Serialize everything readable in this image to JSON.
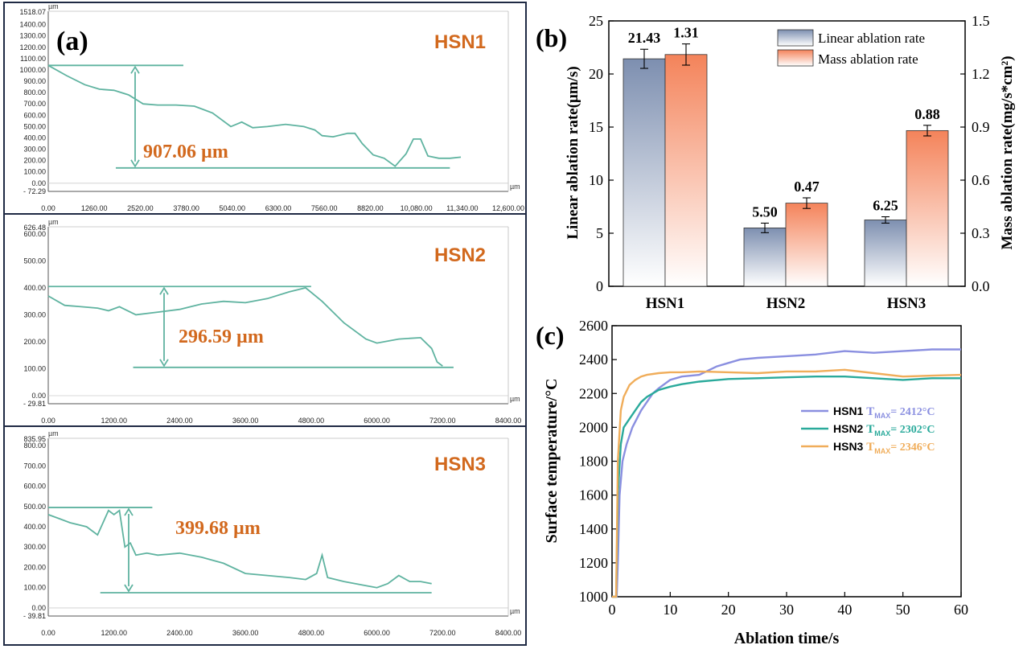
{
  "colors": {
    "teal": "#5fb3a0",
    "orange": "#d2691e",
    "navy": "#1f2a44",
    "linear_bar_top": "#7d8fb0",
    "mass_bar_top": "#f4835a",
    "hsn1_line": "#8a8fe0",
    "hsn2_line": "#2aaa9b",
    "hsn3_line": "#f0ad5a"
  },
  "panel_a": {
    "label": "(a)",
    "unit_label": "µm",
    "profiles": [
      {
        "name": "HSN1",
        "depth_label": "907.06 µm",
        "ymax_label": "1518.07",
        "ymin_label": "- 72.29",
        "y_ticks": [
          "1400.00",
          "1300.00",
          "1200.00",
          "1100.00",
          "1000.00",
          "900.00",
          "800.00",
          "700.00",
          "600.00",
          "500.00",
          "400.00",
          "300.00",
          "200.00",
          "100.00",
          "0.00"
        ],
        "x_ticks": [
          "0.00",
          "1260.00",
          "2520.00",
          "3780.00",
          "5040.00",
          "6300.00",
          "7560.00",
          "8820.00",
          "10,080.00",
          "11,340.00",
          "12,600.00"
        ],
        "chart_data": {
          "type": "line",
          "xlim": [
            0,
            12600
          ],
          "ylim": [
            -72.29,
            1518.07
          ],
          "x": [
            0,
            500,
            1000,
            1400,
            1800,
            2200,
            2600,
            3000,
            3500,
            4000,
            4500,
            5000,
            5300,
            5600,
            6000,
            6500,
            7000,
            7300,
            7500,
            7800,
            8200,
            8400,
            8600,
            8900,
            9200,
            9500,
            9800,
            10000,
            10200,
            10400,
            10700,
            11000,
            11300
          ],
          "y": [
            1040,
            950,
            870,
            830,
            820,
            780,
            700,
            690,
            690,
            680,
            620,
            500,
            540,
            490,
            500,
            520,
            500,
            470,
            420,
            410,
            440,
            440,
            350,
            250,
            220,
            150,
            260,
            390,
            390,
            240,
            220,
            220,
            230
          ],
          "top_ref_y": 1040,
          "bottom_ref_y": 135
        }
      },
      {
        "name": "HSN2",
        "depth_label": "296.59 µm",
        "ymax_label": "626.48",
        "ymin_label": "- 29.81",
        "y_ticks": [
          "600.00",
          "500.00",
          "400.00",
          "300.00",
          "200.00",
          "100.00",
          "0.00"
        ],
        "x_ticks": [
          "0.00",
          "1200.00",
          "2400.00",
          "3600.00",
          "4800.00",
          "6000.00",
          "7200.00",
          "8400.00"
        ],
        "chart_data": {
          "type": "line",
          "xlim": [
            0,
            8400
          ],
          "ylim": [
            -29.81,
            626.48
          ],
          "x": [
            0,
            300,
            600,
            900,
            1100,
            1300,
            1600,
            2000,
            2400,
            2800,
            3200,
            3600,
            4000,
            4400,
            4700,
            5000,
            5400,
            5800,
            6000,
            6400,
            6800,
            7000,
            7100,
            7200
          ],
          "y": [
            370,
            335,
            330,
            325,
            315,
            330,
            300,
            310,
            320,
            340,
            350,
            345,
            360,
            385,
            400,
            350,
            270,
            210,
            195,
            210,
            215,
            175,
            125,
            110
          ],
          "top_ref_y": 405,
          "bottom_ref_y": 105
        }
      },
      {
        "name": "HSN3",
        "depth_label": "399.68 µm",
        "ymax_label": "835.95",
        "ymin_label": "- 39.81",
        "y_ticks": [
          "800.00",
          "700.00",
          "600.00",
          "500.00",
          "400.00",
          "300.00",
          "200.00",
          "100.00",
          "0.00"
        ],
        "x_ticks": [
          "0.00",
          "1200.00",
          "2400.00",
          "3600.00",
          "4800.00",
          "6000.00",
          "7200.00",
          "8400.00"
        ],
        "chart_data": {
          "type": "line",
          "xlim": [
            0,
            8400
          ],
          "ylim": [
            -39.81,
            835.95
          ],
          "x": [
            0,
            200,
            400,
            700,
            900,
            1000,
            1100,
            1200,
            1300,
            1400,
            1500,
            1600,
            1800,
            2000,
            2400,
            2800,
            3200,
            3600,
            4000,
            4400,
            4700,
            4900,
            5000,
            5100,
            5400,
            5800,
            6000,
            6200,
            6400,
            6600,
            6800,
            7000
          ],
          "y": [
            460,
            440,
            420,
            400,
            360,
            420,
            480,
            460,
            480,
            300,
            320,
            260,
            270,
            260,
            270,
            250,
            220,
            170,
            160,
            150,
            140,
            170,
            260,
            150,
            130,
            110,
            100,
            120,
            160,
            130,
            130,
            120
          ],
          "top_ref_y": 495,
          "bottom_ref_y": 75
        }
      }
    ]
  },
  "panel_b": {
    "label": "(b)",
    "chart_data": {
      "type": "bar",
      "categories": [
        "HSN1",
        "HSN2",
        "HSN3"
      ],
      "series": [
        {
          "name": "Linear ablation rate",
          "axis": "left",
          "values": [
            21.43,
            5.5,
            6.25
          ],
          "errors": [
            0.9,
            0.45,
            0.3
          ],
          "labels": [
            "21.43",
            "5.50",
            "6.25"
          ]
        },
        {
          "name": "Mass ablation rate",
          "axis": "right",
          "values": [
            1.31,
            0.47,
            0.88
          ],
          "errors": [
            0.06,
            0.03,
            0.03
          ],
          "labels": [
            "1.31",
            "0.47",
            "0.88"
          ]
        }
      ],
      "ylabel": "Linear ablation rate(µm/s)",
      "y2label": "Mass ablation rate(mg/s*cm²)",
      "ylim": [
        0,
        25
      ],
      "y2lim": [
        0,
        1.5
      ],
      "y_ticks": [
        "0",
        "5",
        "10",
        "15",
        "20",
        "25"
      ],
      "y2_ticks": [
        "0.0",
        "0.3",
        "0.6",
        "0.9",
        "1.2",
        "1.5"
      ],
      "legend_position": "top-right"
    }
  },
  "panel_c": {
    "label": "(c)",
    "chart_data": {
      "type": "line",
      "xlabel": "Ablation time/s",
      "ylabel": "Surface temperature/°C",
      "xlim": [
        0,
        60
      ],
      "ylim": [
        1000,
        2600
      ],
      "x_ticks": [
        "0",
        "10",
        "20",
        "30",
        "40",
        "50",
        "60"
      ],
      "y_ticks": [
        "1000",
        "1200",
        "1400",
        "1600",
        "1800",
        "2000",
        "2200",
        "2400",
        "2600"
      ],
      "series": [
        {
          "name": "HSN1",
          "tmax_prefix": "T",
          "tmax_sub": "MAX",
          "tmax_value": "= 2412°C",
          "x": [
            0,
            0.8,
            1.0,
            1.3,
            1.8,
            2.5,
            3.5,
            5,
            6,
            7,
            8,
            10,
            12,
            15,
            18,
            20,
            22,
            25,
            30,
            35,
            40,
            45,
            50,
            55,
            60
          ],
          "y": [
            1000,
            1000,
            1200,
            1600,
            1800,
            1900,
            2000,
            2100,
            2150,
            2200,
            2230,
            2280,
            2300,
            2310,
            2360,
            2380,
            2400,
            2410,
            2420,
            2430,
            2450,
            2440,
            2450,
            2460,
            2460
          ]
        },
        {
          "name": "HSN2",
          "tmax_prefix": "T",
          "tmax_sub": "MAX",
          "tmax_value": "= 2302°C",
          "x": [
            0,
            0.7,
            1.0,
            1.5,
            2,
            3,
            4,
            5,
            6,
            8,
            10,
            12,
            15,
            20,
            25,
            30,
            35,
            40,
            45,
            50,
            55,
            60
          ],
          "y": [
            1000,
            1000,
            1600,
            1900,
            2000,
            2050,
            2100,
            2150,
            2180,
            2220,
            2240,
            2255,
            2270,
            2285,
            2290,
            2295,
            2300,
            2300,
            2290,
            2280,
            2290,
            2290
          ]
        },
        {
          "name": "HSN3",
          "tmax_prefix": "T",
          "tmax_sub": "MAX",
          "tmax_value": "= 2346°C",
          "x": [
            0,
            0.7,
            1.0,
            1.5,
            2,
            3,
            4,
            5,
            6,
            8,
            10,
            12,
            15,
            20,
            25,
            30,
            35,
            40,
            45,
            50,
            55,
            60
          ],
          "y": [
            1000,
            1000,
            1800,
            2100,
            2180,
            2250,
            2280,
            2300,
            2310,
            2320,
            2325,
            2325,
            2330,
            2325,
            2320,
            2330,
            2330,
            2340,
            2320,
            2300,
            2305,
            2310
          ]
        }
      ]
    }
  }
}
